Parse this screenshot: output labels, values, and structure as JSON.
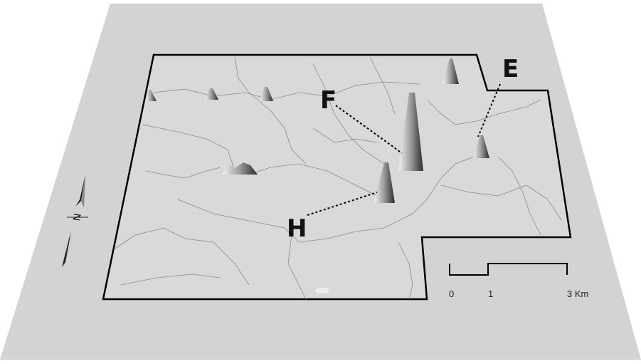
{
  "labels": {
    "e": "E",
    "f": "F",
    "h": "H"
  },
  "north_arrow": {
    "label": "N"
  },
  "scale_bar": {
    "ticks": [
      "0",
      "1",
      "3 Km"
    ]
  }
}
